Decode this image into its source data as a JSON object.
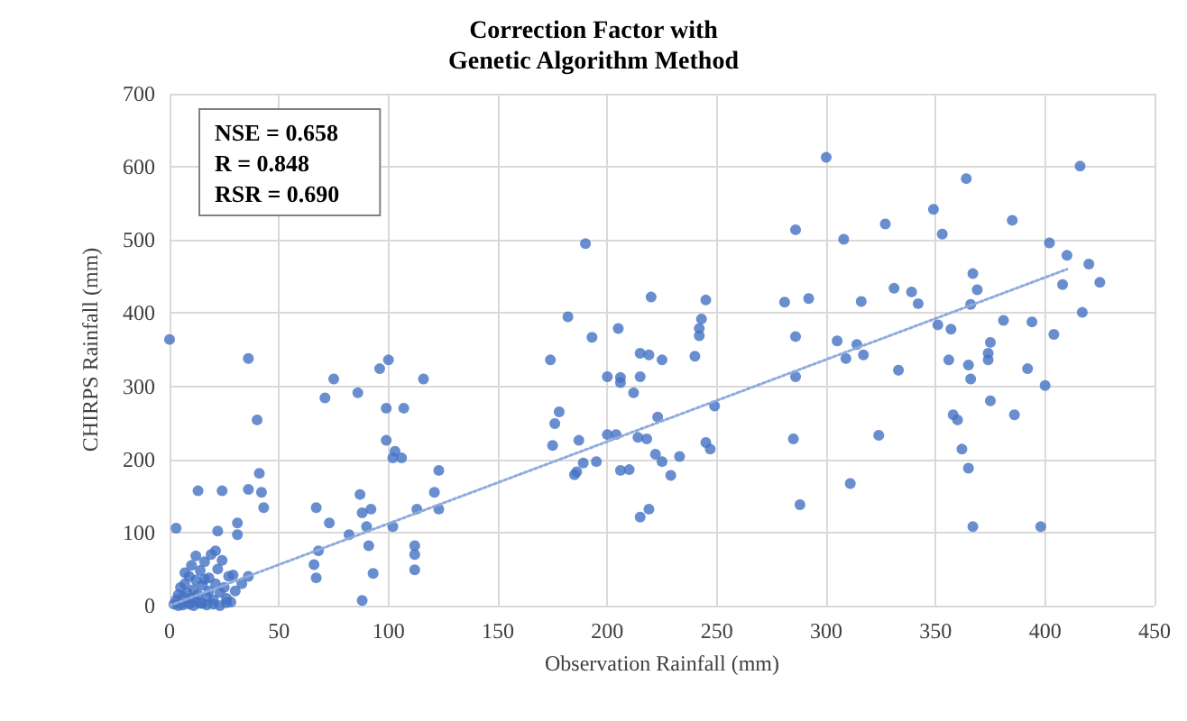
{
  "chart_data": {
    "type": "scatter",
    "title": "Correction Factor with\nGenetic Algorithm Method",
    "xlabel": "Observation Rainfall (mm)",
    "ylabel": "CHIRPS Rainfall (mm)",
    "annotations": [
      "NSE = 0.658\nR = 0.848\nRSR = 0.690"
    ],
    "xlim": [
      0,
      450
    ],
    "xticks": [
      0,
      50,
      100,
      150,
      200,
      250,
      300,
      350,
      400,
      450
    ],
    "ylim": [
      0,
      700
    ],
    "yticks": [
      0,
      100,
      200,
      300,
      400,
      500,
      600,
      700
    ],
    "grid": true,
    "marker": "circle",
    "series": [
      {
        "color": "#4472c4",
        "x": [
          0,
          36,
          40,
          41,
          43,
          42,
          36,
          13,
          24,
          3,
          22,
          31,
          31,
          29,
          36,
          2,
          3,
          4,
          5,
          6,
          7,
          8,
          8,
          9,
          10,
          10,
          11,
          12,
          12,
          13,
          14,
          15,
          15,
          16,
          17,
          18,
          18,
          19,
          20,
          21,
          22,
          23,
          24,
          25,
          26,
          27,
          28,
          4,
          6,
          9,
          11,
          14,
          17,
          20,
          23,
          26,
          30,
          33,
          7,
          12,
          16,
          21,
          75,
          71,
          86,
          96,
          100,
          116,
          99,
          107,
          99,
          103,
          106,
          102,
          123,
          121,
          123,
          113,
          87,
          67,
          73,
          88,
          92,
          90,
          102,
          82,
          91,
          68,
          66,
          67,
          93,
          88,
          112,
          112,
          112,
          300,
          286,
          308,
          190,
          220,
          245,
          243,
          242,
          242,
          281,
          292,
          182,
          193,
          205,
          286,
          174,
          215,
          219,
          225,
          240,
          200,
          206,
          206,
          215,
          212,
          286,
          305,
          309,
          223,
          249,
          178,
          176,
          175,
          187,
          200,
          204,
          214,
          218,
          245,
          247,
          285,
          222,
          225,
          233,
          189,
          186,
          185,
          195,
          206,
          210,
          229,
          215,
          219,
          288,
          311,
          416,
          364,
          349,
          353,
          327,
          385,
          402,
          410,
          420,
          425,
          408,
          367,
          369,
          366,
          331,
          339,
          342,
          316,
          417,
          381,
          394,
          404,
          351,
          357,
          314,
          317,
          356,
          365,
          366,
          375,
          374,
          374,
          333,
          392,
          400,
          375,
          386,
          358,
          360,
          324,
          362,
          365,
          367,
          398
        ],
        "values": [
          364,
          338,
          254,
          181,
          134,
          155,
          159,
          157,
          157,
          106,
          102,
          113,
          97,
          42,
          40,
          2,
          8,
          15,
          25,
          12,
          30,
          4,
          18,
          40,
          10,
          55,
          22,
          6,
          35,
          15,
          48,
          3,
          28,
          60,
          12,
          38,
          20,
          70,
          8,
          30,
          50,
          18,
          62,
          25,
          10,
          40,
          5,
          0,
          1,
          2,
          0,
          3,
          1,
          2,
          0,
          4,
          20,
          30,
          45,
          68,
          36,
          75,
          310,
          284,
          291,
          324,
          336,
          310,
          270,
          270,
          226,
          211,
          202,
          202,
          185,
          155,
          132,
          132,
          152,
          134,
          113,
          127,
          132,
          108,
          108,
          97,
          82,
          75,
          56,
          38,
          44,
          7,
          82,
          70,
          49,
          613,
          514,
          501,
          495,
          422,
          418,
          392,
          379,
          369,
          415,
          420,
          395,
          367,
          379,
          368,
          336,
          345,
          343,
          336,
          341,
          313,
          312,
          305,
          313,
          291,
          313,
          362,
          338,
          258,
          273,
          265,
          249,
          219,
          226,
          234,
          234,
          230,
          228,
          223,
          214,
          228,
          207,
          197,
          204,
          195,
          183,
          179,
          197,
          185,
          186,
          178,
          121,
          132,
          138,
          167,
          601,
          584,
          542,
          508,
          522,
          527,
          496,
          479,
          467,
          442,
          439,
          454,
          432,
          412,
          434,
          429,
          413,
          416,
          401,
          390,
          388,
          371,
          384,
          378,
          357,
          343,
          336,
          329,
          310,
          360,
          345,
          336,
          322,
          324,
          301,
          280,
          261,
          261,
          254,
          233,
          214,
          188,
          108,
          108
        ]
      },
      {
        "type": "line",
        "line_style": "dotted",
        "marker": "none",
        "color": "#8faadc",
        "x": [
          0,
          410
        ],
        "values": [
          0,
          460
        ]
      }
    ]
  }
}
